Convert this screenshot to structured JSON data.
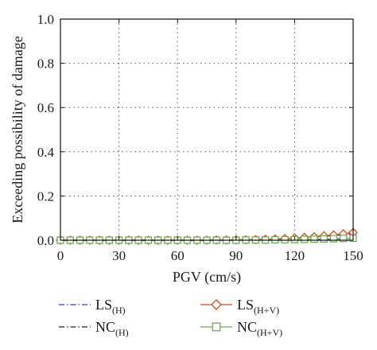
{
  "chart_data": {
    "type": "line",
    "title": "",
    "xlabel": "PGV (cm/s)",
    "ylabel": "Exceeding possibility of damage",
    "xlim": [
      0,
      150
    ],
    "ylim": [
      0,
      1.0
    ],
    "x_ticks": [
      "0",
      "30",
      "60",
      "90",
      "120",
      "150"
    ],
    "y_ticks": [
      "0.0",
      "0.2",
      "0.4",
      "0.6",
      "0.8",
      "1.0"
    ],
    "grid": "dotted",
    "legend_position": "bottom",
    "x": [
      0,
      5,
      10,
      15,
      20,
      25,
      30,
      35,
      40,
      45,
      50,
      55,
      60,
      65,
      70,
      75,
      80,
      85,
      90,
      95,
      100,
      105,
      110,
      115,
      120,
      125,
      130,
      135,
      140,
      145,
      150
    ],
    "series": [
      {
        "name": "LS",
        "name_sub": "(H)",
        "color": "#2b3fa8",
        "line_style": "dash-dot",
        "marker": "none",
        "values": [
          0,
          0,
          0,
          0,
          0,
          0,
          0,
          0,
          0,
          0,
          0,
          0,
          0,
          0,
          0,
          0,
          0.001,
          0.001,
          0.002,
          0.002,
          0.003,
          0.004,
          0.005,
          0.007,
          0.009,
          0.011,
          0.014,
          0.017,
          0.021,
          0.025,
          0.03
        ]
      },
      {
        "name": "NC",
        "name_sub": "(H)",
        "color": "#222222",
        "line_style": "dash-dot",
        "marker": "none",
        "values": [
          0,
          0,
          0,
          0,
          0,
          0,
          0,
          0,
          0,
          0,
          0,
          0,
          0,
          0,
          0,
          0,
          0,
          0,
          0,
          0,
          0.001,
          0.001,
          0.001,
          0.002,
          0.002,
          0.003,
          0.003,
          0.004,
          0.005,
          0.006,
          0.007
        ]
      },
      {
        "name": "LS",
        "name_sub": "(H+V)",
        "color": "#d9431e",
        "line_style": "solid",
        "marker": "diamond",
        "values": [
          0,
          0,
          0,
          0,
          0,
          0,
          0,
          0,
          0,
          0,
          0,
          0,
          0,
          0,
          0,
          0,
          0.001,
          0.001,
          0.002,
          0.002,
          0.003,
          0.004,
          0.006,
          0.008,
          0.01,
          0.013,
          0.016,
          0.02,
          0.024,
          0.029,
          0.035
        ]
      },
      {
        "name": "NC",
        "name_sub": "(H+V)",
        "color": "#6aa84f",
        "line_style": "solid",
        "marker": "square",
        "values": [
          0,
          0,
          0,
          0,
          0,
          0,
          0,
          0,
          0,
          0,
          0,
          0,
          0,
          0,
          0,
          0,
          0,
          0,
          0,
          0.001,
          0.001,
          0.001,
          0.002,
          0.002,
          0.003,
          0.004,
          0.005,
          0.006,
          0.007,
          0.008,
          0.009
        ]
      }
    ]
  }
}
